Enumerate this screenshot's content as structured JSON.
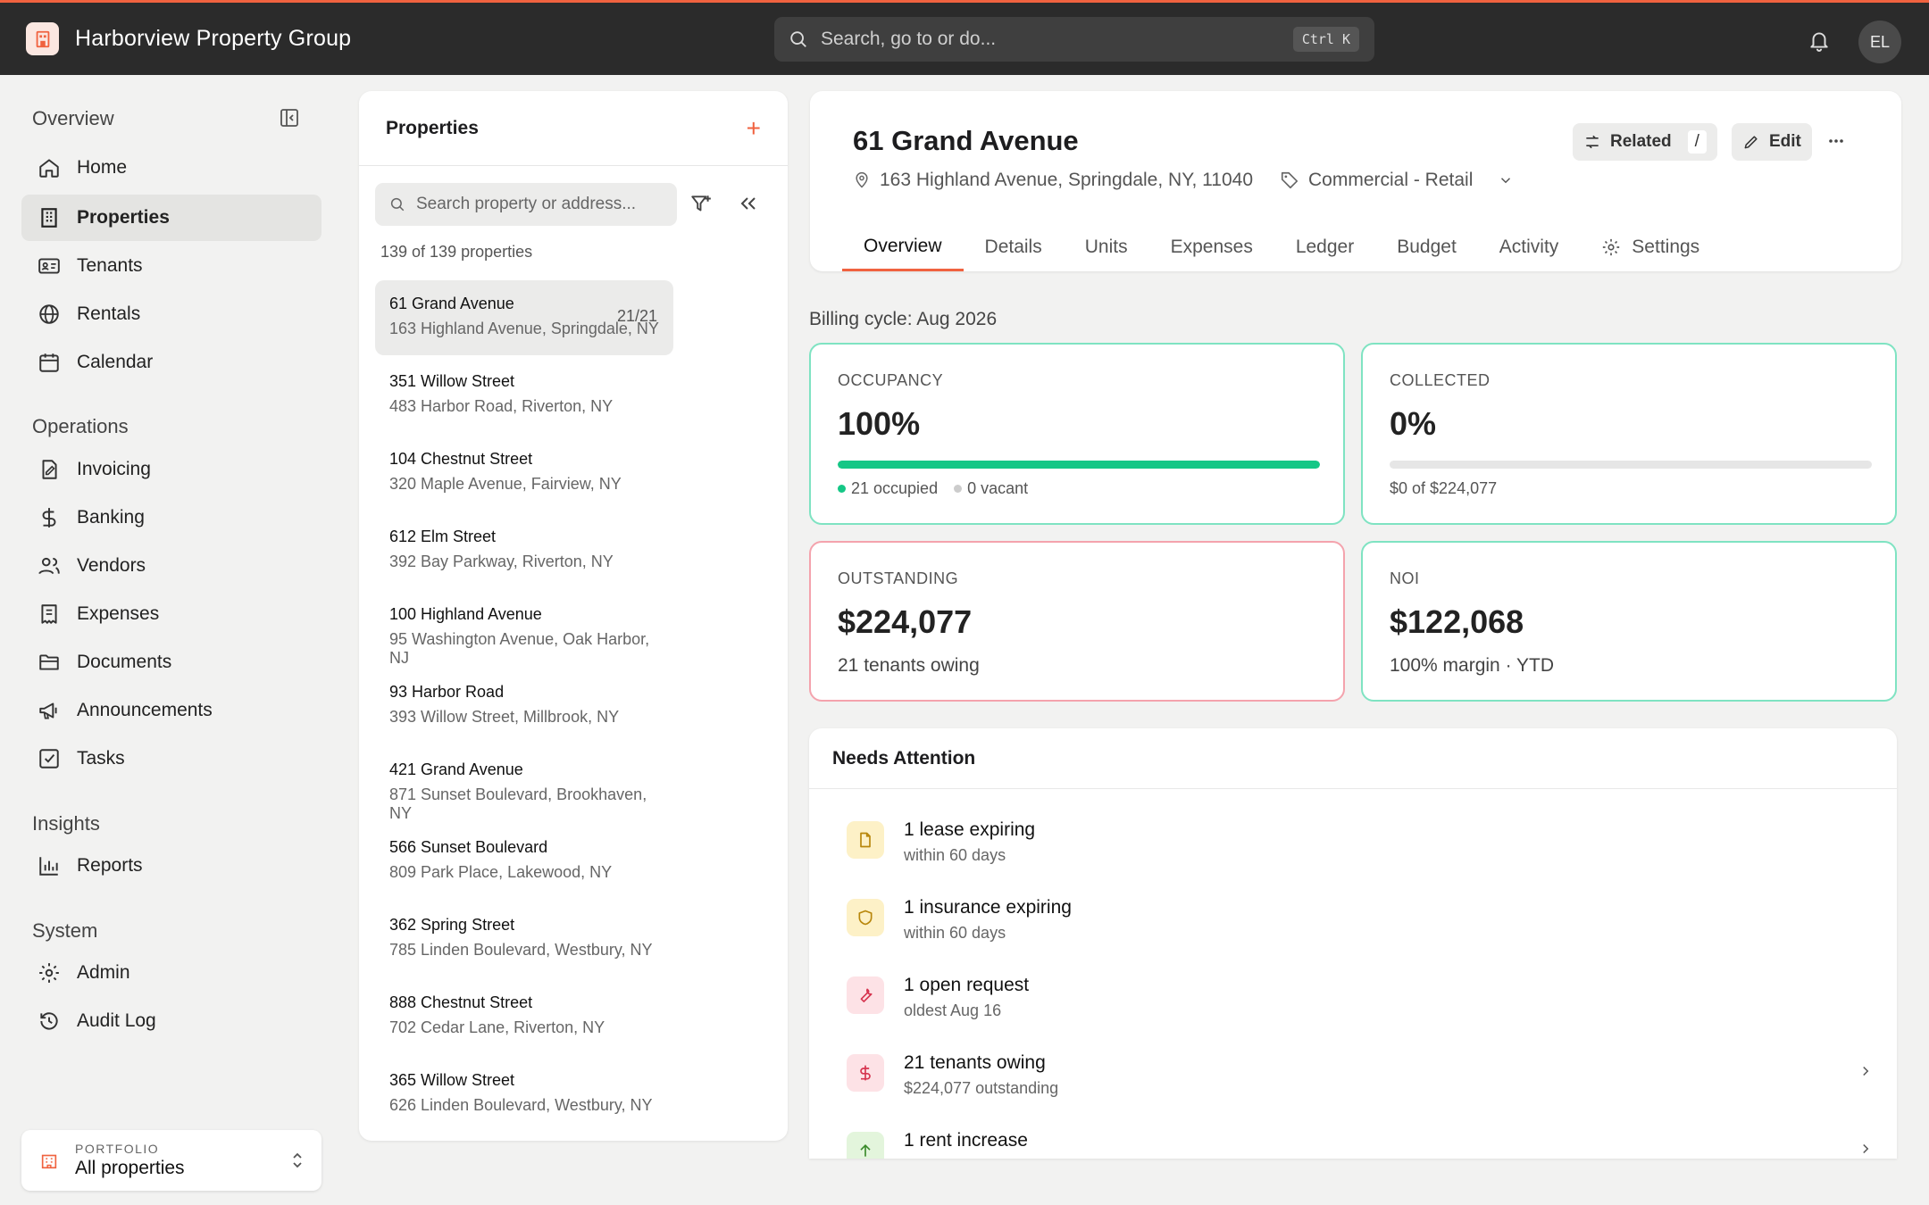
{
  "app": {
    "title": "Harborview Property Group",
    "avatar_initials": "EL"
  },
  "search": {
    "placeholder": "Search, go to or do...",
    "shortcut": "Ctrl K"
  },
  "sidebar": {
    "overview_title": "Overview",
    "sections": [
      {
        "title": "Overview",
        "items": [
          {
            "label": "Home",
            "icon": "home-icon"
          },
          {
            "label": "Properties",
            "icon": "building-icon",
            "active": true
          },
          {
            "label": "Tenants",
            "icon": "id-card-icon"
          },
          {
            "label": "Rentals",
            "icon": "globe-icon"
          },
          {
            "label": "Calendar",
            "icon": "calendar-icon"
          }
        ]
      },
      {
        "title": "Operations",
        "items": [
          {
            "label": "Invoicing",
            "icon": "invoice-icon"
          },
          {
            "label": "Banking",
            "icon": "dollar-icon"
          },
          {
            "label": "Vendors",
            "icon": "users-icon"
          },
          {
            "label": "Expenses",
            "icon": "receipt-icon"
          },
          {
            "label": "Documents",
            "icon": "folder-icon"
          },
          {
            "label": "Announcements",
            "icon": "megaphone-icon"
          },
          {
            "label": "Tasks",
            "icon": "checkbox-icon"
          }
        ]
      },
      {
        "title": "Insights",
        "items": [
          {
            "label": "Reports",
            "icon": "bar-chart-icon"
          }
        ]
      },
      {
        "title": "System",
        "items": [
          {
            "label": "Admin",
            "icon": "gear-icon"
          },
          {
            "label": "Audit Log",
            "icon": "history-icon"
          }
        ]
      }
    ],
    "portfolio": {
      "caption": "PORTFOLIO",
      "value": "All properties"
    }
  },
  "properties": {
    "title": "Properties",
    "search_placeholder": "Search property or address...",
    "count": "139 of 139 properties",
    "items": [
      {
        "name": "61 Grand Avenue",
        "address": "163 Highland Avenue, Springdale, NY",
        "units": "21/21",
        "selected": true
      },
      {
        "name": "351 Willow Street",
        "address": "483 Harbor Road, Riverton, NY"
      },
      {
        "name": "104 Chestnut Street",
        "address": "320 Maple Avenue, Fairview, NY"
      },
      {
        "name": "612 Elm Street",
        "address": "392 Bay Parkway, Riverton, NY"
      },
      {
        "name": "100 Highland Avenue",
        "address": "95 Washington Avenue, Oak Harbor, NJ"
      },
      {
        "name": "93 Harbor Road",
        "address": "393 Willow Street, Millbrook, NY"
      },
      {
        "name": "421 Grand Avenue",
        "address": "871 Sunset Boulevard, Brookhaven, NY"
      },
      {
        "name": "566 Sunset Boulevard",
        "address": "809 Park Place, Lakewood, NY"
      },
      {
        "name": "362 Spring Street",
        "address": "785 Linden Boulevard, Westbury, NY"
      },
      {
        "name": "888 Chestnut Street",
        "address": "702 Cedar Lane, Riverton, NY"
      },
      {
        "name": "365 Willow Street",
        "address": "626 Linden Boulevard, Westbury, NY"
      }
    ]
  },
  "detail": {
    "title": "61 Grand Avenue",
    "address": "163 Highland Avenue, Springdale, NY, 11040",
    "type": "Commercial - Retail",
    "related_label": "Related",
    "related_key": "/",
    "edit_label": "Edit",
    "tabs": [
      "Overview",
      "Details",
      "Units",
      "Expenses",
      "Ledger",
      "Budget",
      "Activity",
      "Settings"
    ],
    "active_tab": "Overview"
  },
  "billing": {
    "label": "Billing cycle: Aug 2026"
  },
  "cards": {
    "occupancy": {
      "label": "OCCUPANCY",
      "value": "100%",
      "progress": 1.0,
      "occupied": "21 occupied",
      "vacant": "0 vacant"
    },
    "collected": {
      "label": "COLLECTED",
      "value": "0%",
      "progress": 0.0,
      "sub": "$0 of $224,077"
    },
    "outstanding": {
      "label": "OUTSTANDING",
      "value": "$224,077",
      "sub": "21 tenants owing"
    },
    "noi": {
      "label": "NOI",
      "value": "$122,068",
      "sub": "100% margin · YTD"
    }
  },
  "attention": {
    "title": "Needs Attention",
    "items": [
      {
        "title": "1 lease expiring",
        "sub": "within 60 days",
        "icon": "document-icon",
        "color": "#fdf1c7",
        "fg": "#b8860b"
      },
      {
        "title": "1 insurance expiring",
        "sub": "within 60 days",
        "icon": "shield-icon",
        "color": "#fdf1c7",
        "fg": "#b8860b"
      },
      {
        "title": "1 open request",
        "sub": "oldest Aug 16",
        "icon": "wrench-icon",
        "color": "#fde2e6",
        "fg": "#d6344f"
      },
      {
        "title": "21 tenants owing",
        "sub": "$224,077 outstanding",
        "icon": "dollar-icon",
        "color": "#fde2e6",
        "fg": "#d6344f"
      },
      {
        "title": "1 rent increase",
        "sub": "",
        "icon": "arrow-up-icon",
        "color": "#e3f5dc",
        "fg": "#3a8a2a"
      }
    ]
  },
  "colors": {
    "accent": "#f0623f",
    "success": "#15c786",
    "warning_border": "#f4a3ad",
    "good_border": "#7fe3c2"
  }
}
